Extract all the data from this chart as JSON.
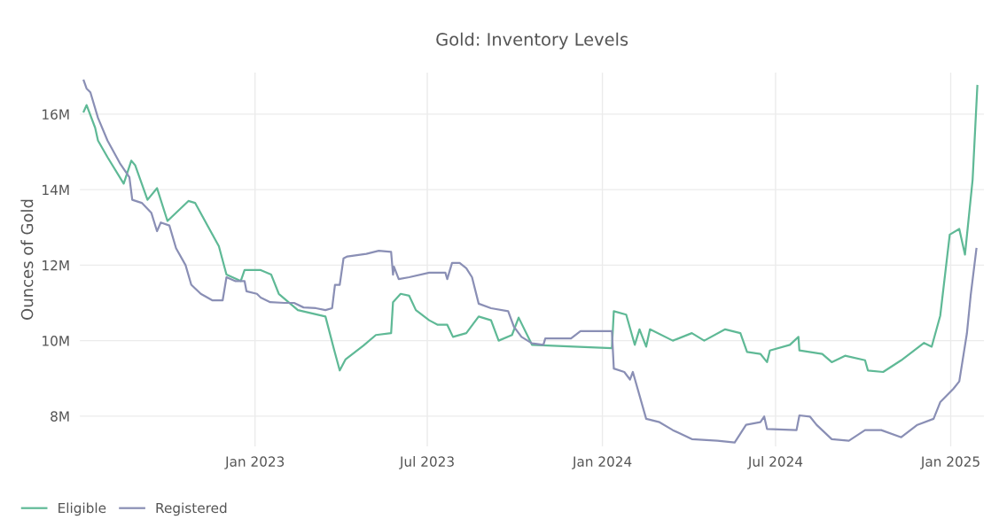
{
  "chart_data": {
    "type": "line",
    "title": "Gold: Inventory Levels",
    "ylabel": "Ounces of Gold",
    "xlim": [
      "2022-07-01",
      "2025-02-05"
    ],
    "ylim": [
      7.2,
      17.1
    ],
    "xticks": [
      {
        "value": "2023-01-01",
        "label": "Jan 2023"
      },
      {
        "value": "2023-07-01",
        "label": "Jul 2023"
      },
      {
        "value": "2024-01-01",
        "label": "Jan 2024"
      },
      {
        "value": "2024-07-01",
        "label": "Jul 2024"
      },
      {
        "value": "2025-01-01",
        "label": "Jan 2025"
      }
    ],
    "yticks": [
      {
        "value": 8,
        "label": "8M"
      },
      {
        "value": 10,
        "label": "10M"
      },
      {
        "value": 12,
        "label": "12M"
      },
      {
        "value": 14,
        "label": "14M"
      },
      {
        "value": 16,
        "label": "16M"
      }
    ],
    "grid": true,
    "legend": "bottom left",
    "marker": "none",
    "line_style": "solid",
    "series": [
      {
        "name": "Eligible",
        "color": "#5fb996",
        "x": [
          "2022-07-05",
          "2022-07-08",
          "2022-07-17",
          "2022-07-20",
          "2022-07-30",
          "2022-08-16",
          "2022-08-24",
          "2022-08-28",
          "2022-09-10",
          "2022-09-20",
          "2022-10-01",
          "2022-10-23",
          "2022-10-30",
          "2022-11-24",
          "2022-12-02",
          "2022-12-17",
          "2022-12-21",
          "2023-01-07",
          "2023-01-18",
          "2023-01-26",
          "2023-02-15",
          "2023-03-16",
          "2023-03-25",
          "2023-03-31",
          "2023-04-06",
          "2023-04-25",
          "2023-05-08",
          "2023-05-24",
          "2023-05-26",
          "2023-06-03",
          "2023-06-12",
          "2023-06-19",
          "2023-07-03",
          "2023-07-12",
          "2023-07-22",
          "2023-07-28",
          "2023-08-11",
          "2023-08-24",
          "2023-09-06",
          "2023-09-14",
          "2023-09-28",
          "2023-10-05",
          "2023-10-19",
          "2023-12-02",
          "2024-01-11",
          "2024-01-13",
          "2024-01-26",
          "2024-02-04",
          "2024-02-09",
          "2024-02-16",
          "2024-02-20",
          "2024-03-15",
          "2024-04-04",
          "2024-04-17",
          "2024-05-09",
          "2024-05-25",
          "2024-06-01",
          "2024-06-15",
          "2024-06-22",
          "2024-06-25",
          "2024-07-16",
          "2024-07-25",
          "2024-07-26",
          "2024-08-19",
          "2024-08-29",
          "2024-09-12",
          "2024-10-03",
          "2024-10-06",
          "2024-10-22",
          "2024-11-10",
          "2024-12-04",
          "2024-12-12",
          "2024-12-21",
          "2024-12-31",
          "2025-01-10",
          "2025-01-16",
          "2025-01-24",
          "2025-01-29"
        ],
        "values": [
          16.07,
          16.24,
          15.64,
          15.3,
          14.86,
          14.16,
          14.77,
          14.65,
          13.73,
          14.04,
          13.17,
          13.7,
          13.65,
          12.5,
          11.75,
          11.58,
          11.87,
          11.87,
          11.75,
          11.24,
          10.81,
          10.64,
          9.77,
          9.21,
          9.5,
          9.87,
          10.15,
          10.2,
          11.02,
          11.24,
          11.19,
          10.81,
          10.54,
          10.42,
          10.42,
          10.1,
          10.2,
          10.64,
          10.54,
          10.0,
          10.15,
          10.61,
          9.89,
          9.84,
          9.8,
          10.78,
          10.69,
          9.89,
          10.3,
          9.84,
          10.3,
          10.0,
          10.2,
          10.0,
          10.3,
          10.2,
          9.7,
          9.65,
          9.43,
          9.74,
          9.89,
          10.1,
          9.74,
          9.65,
          9.43,
          9.6,
          9.48,
          9.21,
          9.17,
          9.48,
          9.94,
          9.84,
          10.66,
          12.81,
          12.96,
          12.28,
          14.26,
          16.75
        ]
      },
      {
        "name": "Registered",
        "color": "#8a8fb5",
        "x": [
          "2022-07-05",
          "2022-07-08",
          "2022-07-12",
          "2022-07-20",
          "2022-07-30",
          "2022-08-12",
          "2022-08-22",
          "2022-08-25",
          "2022-09-04",
          "2022-09-14",
          "2022-09-20",
          "2022-09-24",
          "2022-10-03",
          "2022-10-10",
          "2022-10-20",
          "2022-10-26",
          "2022-11-05",
          "2022-11-17",
          "2022-11-28",
          "2022-12-02",
          "2022-12-11",
          "2022-12-21",
          "2022-12-23",
          "2023-01-03",
          "2023-01-07",
          "2023-01-17",
          "2023-02-01",
          "2023-02-11",
          "2023-02-21",
          "2023-03-06",
          "2023-03-16",
          "2023-03-23",
          "2023-03-26",
          "2023-03-31",
          "2023-04-04",
          "2023-04-08",
          "2023-04-28",
          "2023-05-11",
          "2023-05-24",
          "2023-05-26",
          "2023-05-27",
          "2023-06-01",
          "2023-06-12",
          "2023-07-03",
          "2023-07-20",
          "2023-07-22",
          "2023-07-27",
          "2023-08-04",
          "2023-08-11",
          "2023-08-17",
          "2023-08-24",
          "2023-09-06",
          "2023-09-24",
          "2023-09-30",
          "2023-10-08",
          "2023-10-19",
          "2023-10-31",
          "2023-11-02",
          "2023-11-29",
          "2023-12-09",
          "2024-01-11",
          "2024-01-13",
          "2024-01-24",
          "2024-01-30",
          "2024-02-02",
          "2024-02-16",
          "2024-03-01",
          "2024-03-15",
          "2024-04-04",
          "2024-05-01",
          "2024-05-19",
          "2024-05-31",
          "2024-06-15",
          "2024-06-19",
          "2024-06-22",
          "2024-07-23",
          "2024-07-26",
          "2024-08-06",
          "2024-08-13",
          "2024-08-29",
          "2024-09-16",
          "2024-10-03",
          "2024-10-20",
          "2024-11-10",
          "2024-11-27",
          "2024-12-14",
          "2024-12-21",
          "2025-01-04",
          "2025-01-10",
          "2025-01-18",
          "2025-01-22",
          "2025-01-28"
        ],
        "values": [
          16.89,
          16.68,
          16.58,
          15.9,
          15.3,
          14.7,
          14.33,
          13.73,
          13.65,
          13.39,
          12.9,
          13.13,
          13.05,
          12.45,
          12.0,
          11.48,
          11.24,
          11.07,
          11.07,
          11.68,
          11.58,
          11.58,
          11.31,
          11.24,
          11.14,
          11.02,
          11.0,
          11.0,
          10.88,
          10.86,
          10.81,
          10.86,
          11.48,
          11.48,
          12.18,
          12.23,
          12.3,
          12.38,
          12.35,
          11.75,
          11.96,
          11.63,
          11.68,
          11.8,
          11.8,
          11.63,
          12.06,
          12.06,
          11.92,
          11.68,
          10.98,
          10.86,
          10.78,
          10.37,
          10.1,
          9.93,
          9.89,
          10.06,
          10.06,
          10.25,
          10.25,
          9.26,
          9.17,
          8.97,
          9.17,
          7.93,
          7.84,
          7.63,
          7.39,
          7.35,
          7.3,
          7.77,
          7.84,
          7.99,
          7.66,
          7.63,
          8.02,
          7.99,
          7.77,
          7.39,
          7.35,
          7.63,
          7.63,
          7.44,
          7.77,
          7.93,
          8.37,
          8.73,
          8.92,
          10.19,
          11.2,
          12.43
        ]
      }
    ]
  }
}
